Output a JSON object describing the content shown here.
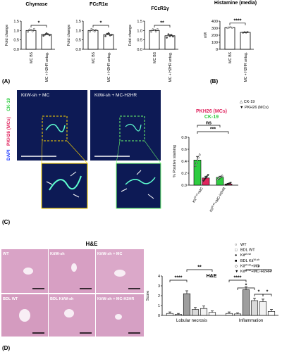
{
  "panel_labels": {
    "A": "(A)",
    "B": "(B)",
    "C": "(C)",
    "D": "(D)"
  },
  "chart_data": [
    {
      "id": "chymase",
      "type": "bar",
      "title": "Chymase",
      "ylabel": "Fold change",
      "ylim": [
        0,
        1.5
      ],
      "yticks": [
        "0.0",
        "0.5",
        "1.0",
        "1.5"
      ],
      "categories": [
        "MC BS",
        "MC + H2HR antag."
      ],
      "values": [
        1.0,
        0.79
      ],
      "errors": [
        0.05,
        0.04
      ],
      "points": [
        [
          0.93,
          1.05,
          1.02,
          0.96,
          1.08
        ],
        [
          0.72,
          0.78,
          0.85,
          0.8,
          0.75
        ]
      ],
      "significance": "*",
      "bar_colors": [
        "#ffffff",
        "#ffffff"
      ]
    },
    {
      "id": "fcer1a",
      "type": "bar",
      "title": "FCεR1α",
      "ylabel": "Fold change",
      "ylim": [
        0,
        1.5
      ],
      "yticks": [
        "0.0",
        "0.5",
        "1.0",
        "1.5"
      ],
      "categories": [
        "MC BS",
        "MC + H2HR antag."
      ],
      "values": [
        1.0,
        0.78
      ],
      "errors": [
        0.05,
        0.05
      ],
      "points": [
        [
          0.94,
          1.08,
          1.01,
          0.95,
          1.04
        ],
        [
          0.7,
          0.82,
          0.86,
          0.74,
          0.77
        ]
      ],
      "significance": "*",
      "bar_colors": [
        "#ffffff",
        "#ffffff"
      ]
    },
    {
      "id": "fcer1g",
      "type": "bar",
      "title": "FCεR1γ",
      "ylabel": "Fold change",
      "ylim": [
        0,
        1.5
      ],
      "yticks": [
        "0.0",
        "0.5",
        "1.0",
        "1.5"
      ],
      "categories": [
        "MC BS",
        "MC + H2HR antag."
      ],
      "values": [
        1.0,
        0.72
      ],
      "errors": [
        0.05,
        0.06
      ],
      "points": [
        [
          0.93,
          1.06,
          1.02,
          0.95,
          1.07
        ],
        [
          0.62,
          0.8,
          0.7,
          0.76,
          0.68
        ]
      ],
      "significance": "**",
      "bar_colors": [
        "#ffffff",
        "#ffffff"
      ]
    },
    {
      "id": "histamine",
      "type": "bar",
      "title": "Histamine (media)",
      "ylabel": "nM",
      "ylim": [
        0,
        400
      ],
      "yticks": [
        "0",
        "100",
        "200",
        "300",
        "400"
      ],
      "categories": [
        "MC BS",
        "MC + H2HR antag."
      ],
      "values": [
        308,
        240
      ],
      "errors": [
        4,
        4
      ],
      "points": [
        [
          302,
          310,
          313,
          306
        ],
        [
          236,
          242,
          238,
          244
        ]
      ],
      "significance": "****",
      "bar_colors": [
        "#ffffff",
        "#ffffff"
      ]
    },
    {
      "id": "staining",
      "type": "bar",
      "title_parts": [
        "PKH26 (MCs)",
        "CK-19"
      ],
      "ylabel": "% Positive staining",
      "ylim": [
        0,
        0.8
      ],
      "yticks": [
        "0.0",
        "0.2",
        "0.4",
        "0.6",
        "0.8"
      ],
      "categories": [
        "KitW-sh+MC",
        "KitW-sh+MC-H2HR"
      ],
      "series": [
        {
          "name": "CK-19",
          "color": "#2ecc40",
          "values": [
            0.42,
            0.13
          ],
          "errors": [
            0.06,
            0.02
          ]
        },
        {
          "name": "PKH26 (MCs)",
          "color": "#e0245e",
          "values": [
            0.12,
            0.02
          ],
          "errors": [
            0.03,
            0.01
          ]
        }
      ],
      "significance": [
        "***",
        "ns"
      ]
    },
    {
      "id": "he_score",
      "type": "bar",
      "title": "H&E",
      "ylabel": "Score",
      "ylim": [
        0,
        4
      ],
      "yticks": [
        "0",
        "1",
        "2",
        "3",
        "4"
      ],
      "categories": [
        "Lobular necrosis",
        "Inflammation"
      ],
      "series": [
        {
          "name": "WT",
          "values": [
            0.2,
            0.2
          ],
          "errors": [
            0.15,
            0.15
          ],
          "color": "#ffffff"
        },
        {
          "name": "BDL WT",
          "values": [
            0.1,
            0.15
          ],
          "errors": [
            0.1,
            0.1
          ],
          "color": "#ffffff"
        },
        {
          "name": "KitW-sh",
          "values": [
            2.2,
            2.6
          ],
          "errors": [
            0.3,
            0.3
          ],
          "color": "#9e9e9e"
        },
        {
          "name": "BDL KitW-sh",
          "values": [
            0.6,
            1.5
          ],
          "errors": [
            0.2,
            0.25
          ],
          "color": "#d9d9d9"
        },
        {
          "name": "KitW-sh+MC",
          "values": [
            0.7,
            1.4
          ],
          "errors": [
            0.25,
            0.25
          ],
          "color": "#f2f2f2"
        },
        {
          "name": "KitW-sh+MC-H2HR",
          "values": [
            0.3,
            0.4
          ],
          "errors": [
            0.15,
            0.2
          ],
          "color": "#ffffff"
        }
      ],
      "significance": [
        "****",
        "**",
        "****",
        "*",
        "*",
        "*",
        "*"
      ]
    }
  ],
  "micrographs_c": {
    "left_label": "KitW-sh + MC",
    "right_label": "KitW-sh + MC-H2HR",
    "side_label_dapi": "DAPI",
    "side_label_pkh": "PKH26 (MCs)",
    "side_label_ck": "CK-19"
  },
  "micrographs_d": {
    "title": "H&E",
    "labels": [
      "WT",
      "KitW-sh",
      "KitW-sh + MC",
      "BDL WT",
      "BDL KitW-sh",
      "KitW-sh + MC-H2HR"
    ]
  },
  "colors": {
    "ck19": "#2ecc40",
    "pkh26": "#e0245e",
    "dapi": "#1f3bff",
    "he": "#d9a3c6"
  }
}
